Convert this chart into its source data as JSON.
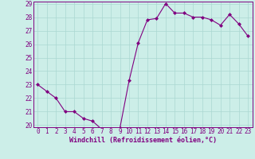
{
  "x": [
    0,
    1,
    2,
    3,
    4,
    5,
    6,
    7,
    8,
    9,
    10,
    11,
    12,
    13,
    14,
    15,
    16,
    17,
    18,
    19,
    20,
    21,
    22,
    23
  ],
  "y": [
    23.0,
    22.5,
    22.0,
    21.0,
    21.0,
    20.5,
    20.3,
    19.7,
    19.7,
    19.8,
    23.3,
    26.1,
    27.8,
    27.9,
    29.0,
    28.3,
    28.3,
    28.0,
    28.0,
    27.8,
    27.4,
    28.2,
    27.5,
    26.6
  ],
  "line_color": "#800080",
  "marker": "D",
  "marker_size": 2,
  "xlabel": "Windchill (Refroidissement éolien,°C)",
  "ylim": [
    20,
    29
  ],
  "xlim": [
    -0.5,
    23.5
  ],
  "yticks": [
    20,
    21,
    22,
    23,
    24,
    25,
    26,
    27,
    28,
    29
  ],
  "xticks": [
    0,
    1,
    2,
    3,
    4,
    5,
    6,
    7,
    8,
    9,
    10,
    11,
    12,
    13,
    14,
    15,
    16,
    17,
    18,
    19,
    20,
    21,
    22,
    23
  ],
  "bg_color": "#cceee8",
  "grid_color": "#aad8d2",
  "tick_fontsize": 5.5,
  "xlabel_fontsize": 6.0,
  "linewidth": 0.8
}
